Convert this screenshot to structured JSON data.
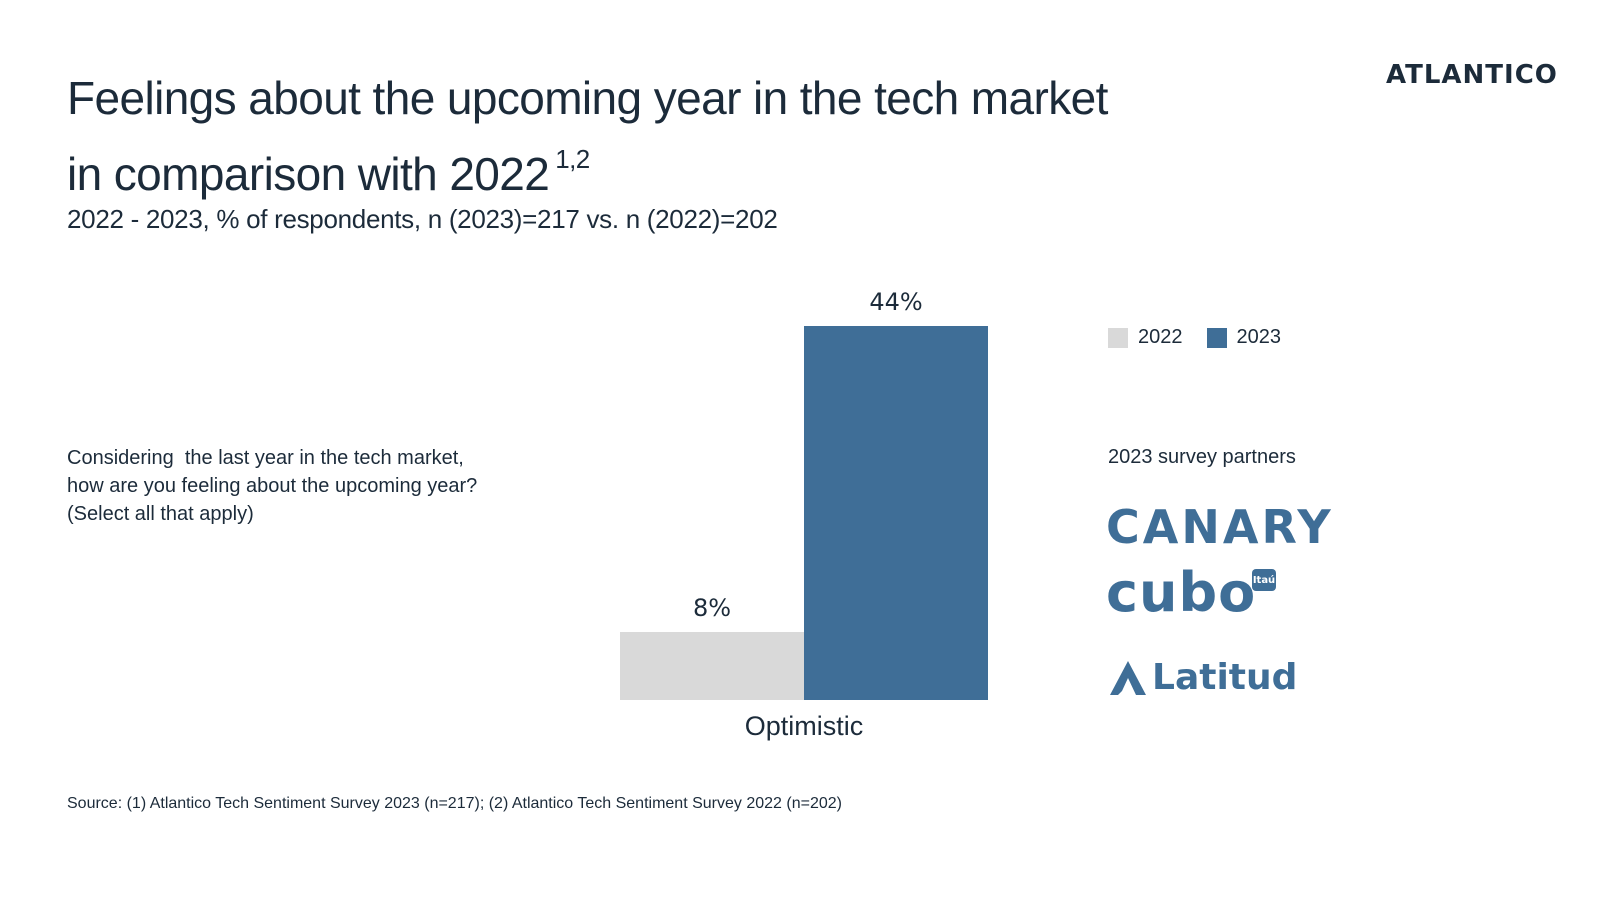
{
  "brand": {
    "name": "ATLANTICO"
  },
  "header": {
    "title_line1": "Feelings about the upcoming year in the tech market",
    "title_line2": "in comparison with 2022",
    "title_footnote": "1,2",
    "subtitle": "2022 - 2023, % of respondents, n (2023)=217 vs. n (2022)=202"
  },
  "question": {
    "line1": "Considering  the last year in the tech market,",
    "line2": "how are you feeling about the upcoming year?",
    "line3": "(Select all that apply)"
  },
  "chart_data": {
    "type": "bar",
    "categories": [
      "Optimistic"
    ],
    "series": [
      {
        "name": "2022",
        "values": [
          8
        ],
        "labels": [
          "8%"
        ],
        "color": "#d9d9d9"
      },
      {
        "name": "2023",
        "values": [
          44
        ],
        "labels": [
          "44%"
        ],
        "color": "#3f6e97"
      }
    ],
    "ylim": [
      0,
      44
    ],
    "grid": false,
    "legend": "top-right"
  },
  "legend": {
    "items": [
      {
        "label": "2022",
        "color": "#d9d9d9"
      },
      {
        "label": "2023",
        "color": "#3f6e97"
      }
    ]
  },
  "partners": {
    "title": "2023 survey partners",
    "logos": {
      "canary": "CANARY",
      "cubo": "cubo",
      "itau": "Itaú",
      "latitud": "Latitud"
    }
  },
  "source": "Source: (1) Atlantico Tech Sentiment Survey 2023 (n=217); (2) Atlantico Tech Sentiment Survey 2022 (n=202)"
}
